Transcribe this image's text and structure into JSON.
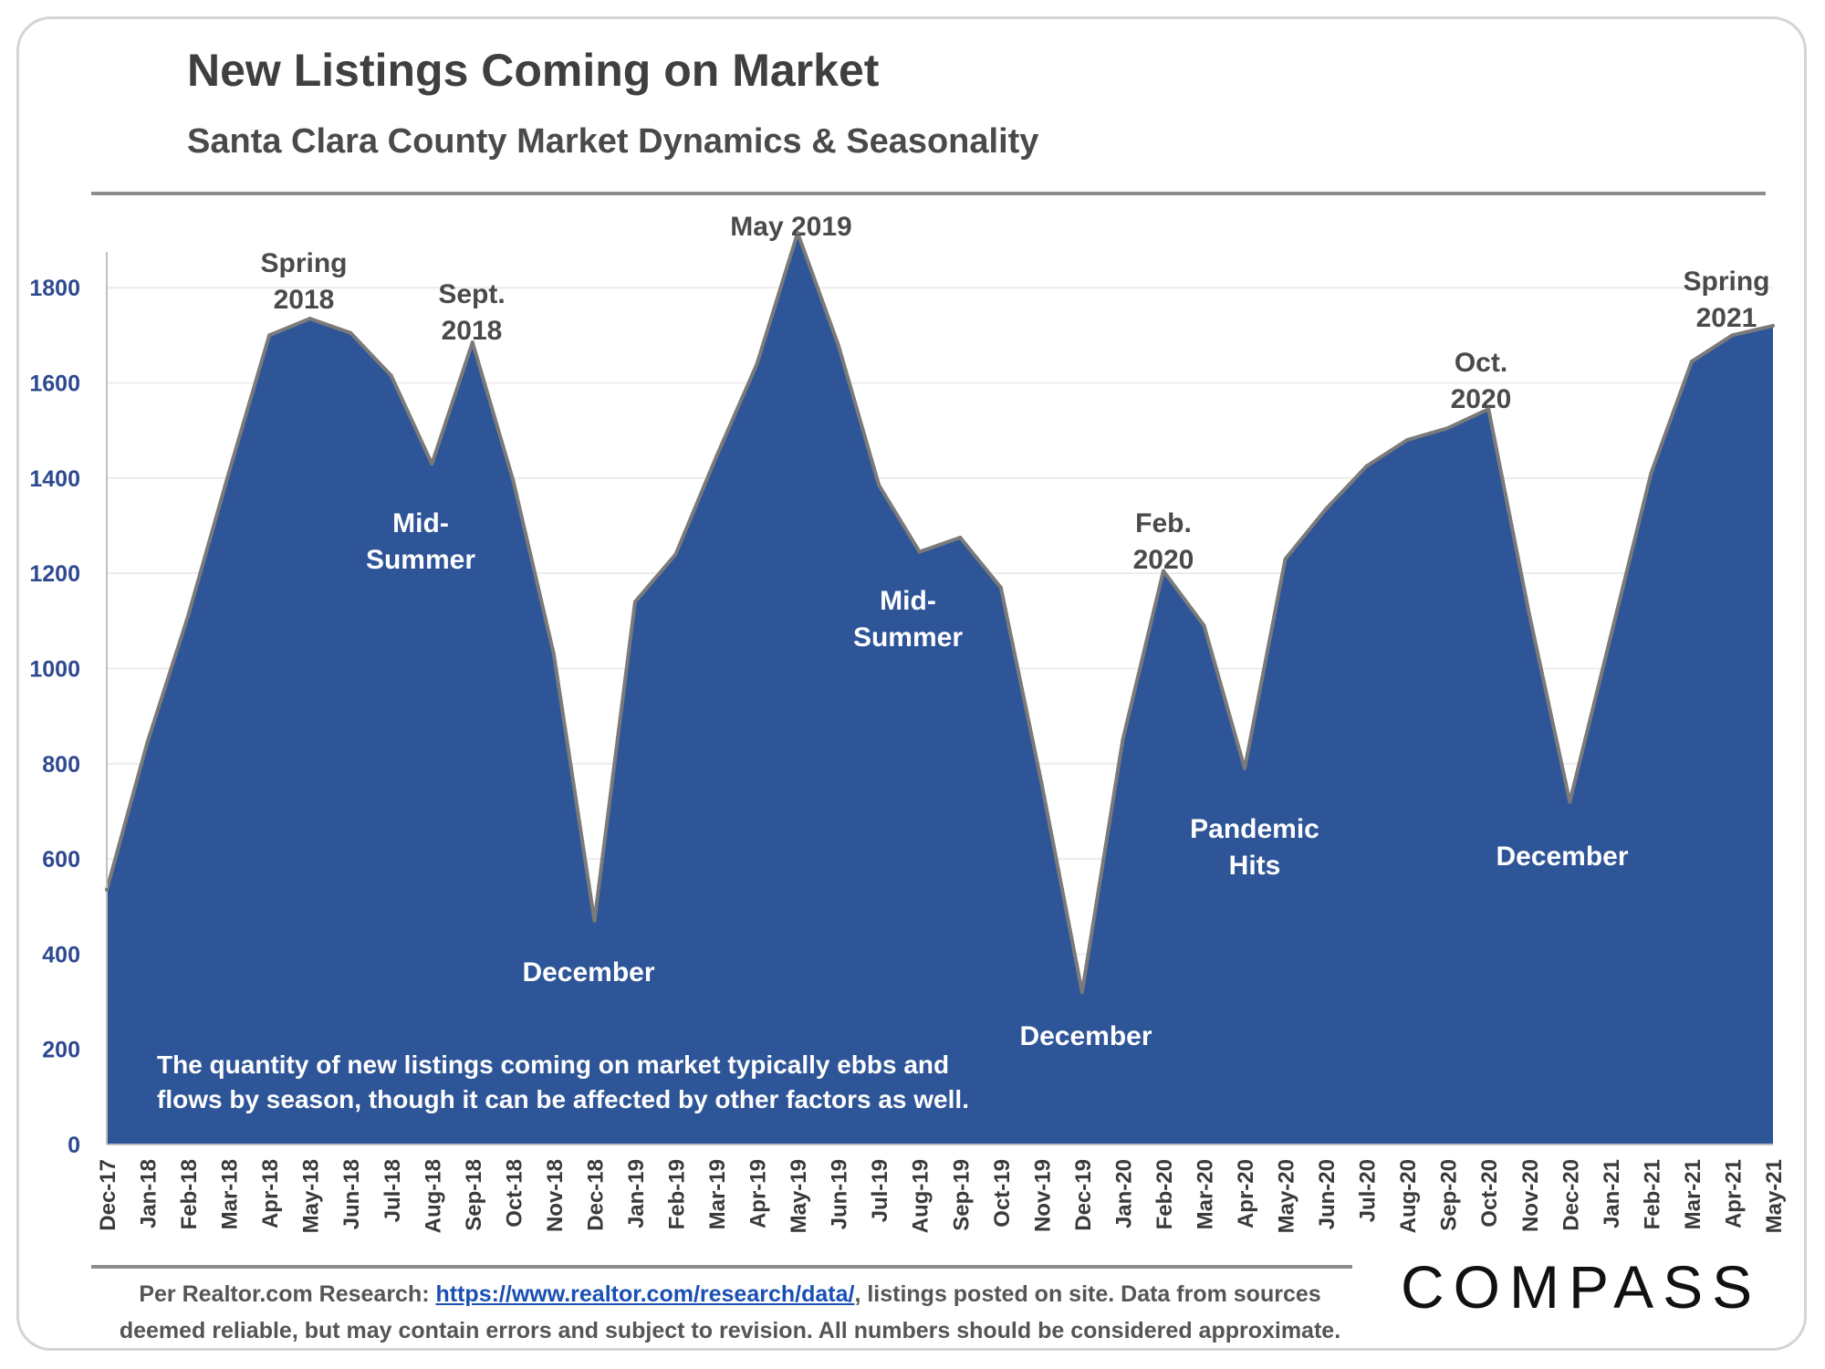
{
  "header": {
    "title": "New Listings Coming on Market",
    "subtitle": "Santa Clara County Market Dynamics & Seasonality"
  },
  "note": {
    "line1": "The quantity of new listings coming on market typically ebbs and",
    "line2": "flows by season, though it can be affected by other factors as well."
  },
  "footer": {
    "prefix": "Per Realtor.com Research: ",
    "link": "https://www.realtor.com/research/data/",
    "line1_suffix": ", listings posted on site. Data from sources",
    "line2": "deemed reliable, but may contain errors and subject to revision. All numbers should be considered approximate."
  },
  "logo": {
    "text": "COMPASS"
  },
  "colors": {
    "area_fill": "#2e5597",
    "area_stroke": "#7a7a7a",
    "annotation_dark": "#4a4a4a",
    "annotation_light": "#ffffff",
    "tick_label": "#2e4a8f"
  },
  "chart_data": {
    "type": "area",
    "xlabel": "",
    "ylabel": "",
    "ylim": [
      0,
      1900
    ],
    "yticks": [
      0,
      200,
      400,
      600,
      800,
      1000,
      1200,
      1400,
      1600,
      1800
    ],
    "grid": true,
    "categories": [
      "Dec-17",
      "Jan-18",
      "Feb-18",
      "Mar-18",
      "Apr-18",
      "May-18",
      "Jun-18",
      "Jul-18",
      "Aug-18",
      "Sep-18",
      "Oct-18",
      "Nov-18",
      "Dec-18",
      "Jan-19",
      "Feb-19",
      "Mar-19",
      "Apr-19",
      "May-19",
      "Jun-19",
      "Jul-19",
      "Aug-19",
      "Sep-19",
      "Oct-19",
      "Nov-19",
      "Dec-19",
      "Jan-20",
      "Feb-20",
      "Mar-20",
      "Apr-20",
      "May-20",
      "Jun-20",
      "Jul-20",
      "Aug-20",
      "Sep-20",
      "Oct-20",
      "Nov-20",
      "Dec-20",
      "Jan-21",
      "Feb-21",
      "Mar-21",
      "Apr-21",
      "May-21"
    ],
    "values": [
      535,
      845,
      1110,
      1410,
      1700,
      1735,
      1705,
      1615,
      1430,
      1685,
      1395,
      1030,
      470,
      1140,
      1240,
      1445,
      1640,
      1915,
      1680,
      1385,
      1245,
      1275,
      1170,
      760,
      320,
      850,
      1205,
      1090,
      790,
      1230,
      1335,
      1425,
      1480,
      1505,
      1545,
      1115,
      720,
      1065,
      1410,
      1645,
      1700,
      1720
    ],
    "annotations": [
      {
        "lines": [
          "Spring",
          "2018"
        ],
        "index": 5,
        "style": "dark"
      },
      {
        "lines": [
          "Sept.",
          "2018"
        ],
        "index": 9,
        "style": "dark"
      },
      {
        "lines": [
          "Mid-",
          "Summer"
        ],
        "index": 8,
        "style": "light"
      },
      {
        "lines": [
          "December"
        ],
        "index": 12,
        "style": "light"
      },
      {
        "lines": [
          "May 2019"
        ],
        "index": 17,
        "style": "dark"
      },
      {
        "lines": [
          "Mid-",
          "Summer"
        ],
        "index": 20,
        "style": "light"
      },
      {
        "lines": [
          "December"
        ],
        "index": 24,
        "style": "light"
      },
      {
        "lines": [
          "Feb.",
          "2020"
        ],
        "index": 26,
        "style": "dark"
      },
      {
        "lines": [
          "Pandemic",
          "Hits"
        ],
        "index": 28,
        "style": "light"
      },
      {
        "lines": [
          "Oct.",
          "2020"
        ],
        "index": 34,
        "style": "dark"
      },
      {
        "lines": [
          "December"
        ],
        "index": 36,
        "style": "light"
      },
      {
        "lines": [
          "Spring",
          "2021"
        ],
        "index": 41,
        "style": "dark"
      }
    ]
  }
}
